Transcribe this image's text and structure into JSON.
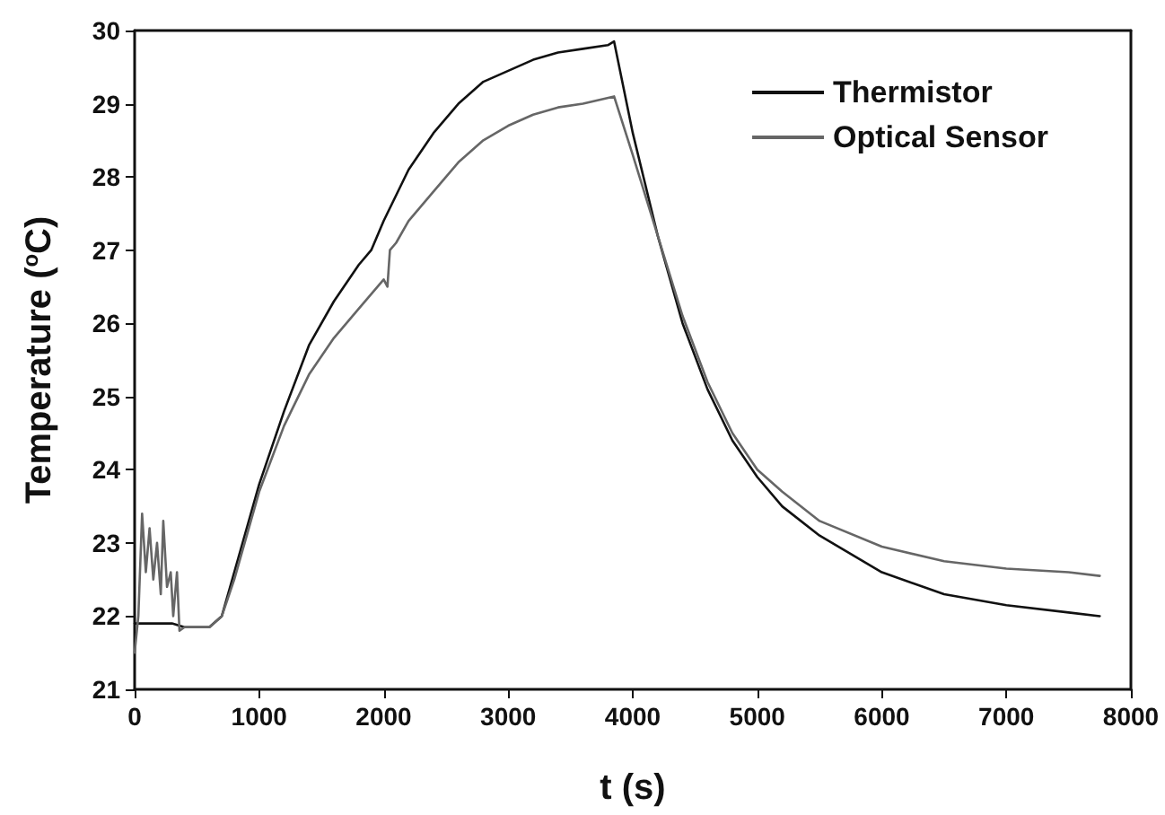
{
  "chart_data": {
    "type": "line",
    "xlabel": "t (s)",
    "ylabel": "Temperature ($^{o}$C)",
    "xlim": [
      0,
      8000
    ],
    "xticks": [
      0,
      1000,
      2000,
      3000,
      4000,
      5000,
      6000,
      7000,
      8000
    ],
    "ylim": [
      21,
      30
    ],
    "yticks": [
      21,
      22,
      23,
      24,
      25,
      26,
      27,
      28,
      29,
      30
    ],
    "grid": false,
    "legend": "top right",
    "marker": "none",
    "line_style": "solid",
    "series": [
      {
        "name": "Thermistor",
        "color": "#111111",
        "x": [
          0,
          300,
          400,
          600,
          700,
          800,
          1000,
          1200,
          1400,
          1600,
          1800,
          1900,
          2000,
          2200,
          2400,
          2600,
          2800,
          3000,
          3200,
          3400,
          3600,
          3800,
          3850,
          4000,
          4200,
          4400,
          4600,
          4800,
          5000,
          5200,
          5500,
          6000,
          6500,
          7000,
          7500,
          7750
        ],
        "values": [
          21.9,
          21.9,
          21.85,
          21.85,
          22.0,
          22.6,
          23.8,
          24.8,
          25.7,
          26.3,
          26.8,
          27.0,
          27.4,
          28.1,
          28.6,
          29.0,
          29.3,
          29.45,
          29.6,
          29.7,
          29.75,
          29.8,
          29.85,
          28.6,
          27.2,
          26.0,
          25.1,
          24.4,
          23.9,
          23.5,
          23.1,
          22.6,
          22.3,
          22.15,
          22.05,
          22.0
        ]
      },
      {
        "name": "Optical Sensor",
        "color": "#666666",
        "x": [
          0,
          30,
          60,
          90,
          120,
          150,
          180,
          210,
          230,
          260,
          290,
          310,
          340,
          360,
          400,
          600,
          700,
          800,
          1000,
          1200,
          1400,
          1600,
          1800,
          2000,
          2030,
          2050,
          2100,
          2200,
          2400,
          2600,
          2800,
          3000,
          3200,
          3400,
          3600,
          3850,
          4000,
          4200,
          4400,
          4600,
          4800,
          5000,
          5200,
          5500,
          6000,
          6500,
          7000,
          7500,
          7750
        ],
        "values": [
          21.5,
          22.0,
          23.4,
          22.6,
          23.2,
          22.5,
          23.0,
          22.3,
          23.3,
          22.4,
          22.6,
          22.0,
          22.6,
          21.8,
          21.85,
          21.85,
          22.0,
          22.5,
          23.7,
          24.6,
          25.3,
          25.8,
          26.2,
          26.6,
          26.5,
          27.0,
          27.1,
          27.4,
          27.8,
          28.2,
          28.5,
          28.7,
          28.85,
          28.95,
          29.0,
          29.1,
          28.3,
          27.2,
          26.1,
          25.2,
          24.5,
          24.0,
          23.7,
          23.3,
          22.95,
          22.75,
          22.65,
          22.6,
          22.55
        ]
      }
    ]
  }
}
